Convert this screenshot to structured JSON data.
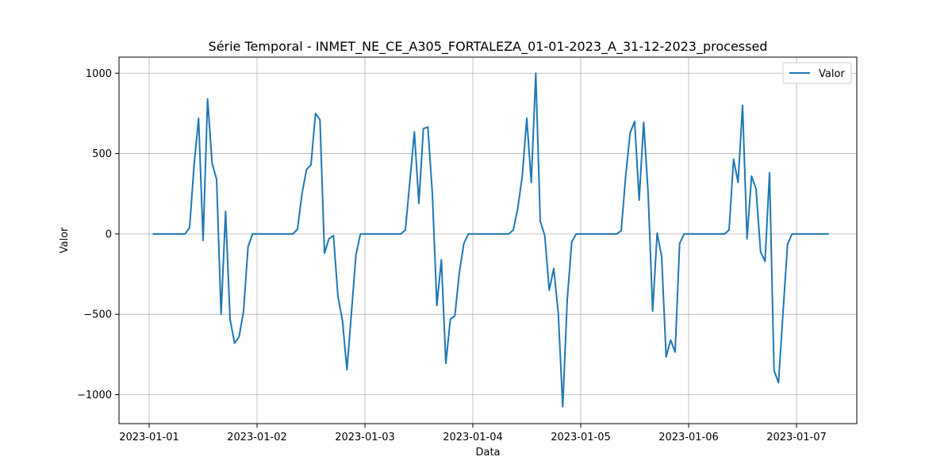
{
  "chart_data": {
    "type": "line",
    "title": "Série Temporal - INMET_NE_CE_A305_FORTALEZA_01-01-2023_A_31-12-2023_processed",
    "xlabel": "Data",
    "ylabel": "Valor",
    "x_tick_labels": [
      "2023-01-01",
      "2023-01-02",
      "2023-01-03",
      "2023-01-04",
      "2023-01-05",
      "2023-01-06",
      "2023-01-07"
    ],
    "y_ticks": [
      -1000,
      -500,
      0,
      500,
      1000
    ],
    "y_tick_labels": [
      "−1000",
      "−500",
      "0",
      "500",
      "1000"
    ],
    "ylim": [
      -1180,
      1100
    ],
    "grid": true,
    "legend_position": "top-right",
    "line_color": "#1f77b4",
    "series": [
      {
        "name": "Valor",
        "x_start": "2023-01-01 01:00",
        "x_step_hours": 1,
        "values": [
          0,
          0,
          0,
          0,
          0,
          0,
          0,
          0,
          40,
          430,
          720,
          -40,
          840,
          440,
          340,
          -500,
          140,
          -530,
          -680,
          -640,
          -480,
          -80,
          0,
          0,
          0,
          0,
          0,
          0,
          0,
          0,
          0,
          0,
          30,
          250,
          400,
          430,
          750,
          710,
          -120,
          -30,
          -10,
          -390,
          -540,
          -845,
          -490,
          -130,
          0,
          0,
          0,
          0,
          0,
          0,
          0,
          0,
          0,
          0,
          25,
          330,
          635,
          190,
          655,
          665,
          250,
          -445,
          -160,
          -805,
          -530,
          -510,
          -240,
          -60,
          0,
          0,
          0,
          0,
          0,
          0,
          0,
          0,
          0,
          0,
          25,
          160,
          360,
          720,
          320,
          1000,
          80,
          -10,
          -350,
          -215,
          -490,
          -1075,
          -410,
          -50,
          0,
          0,
          0,
          0,
          0,
          0,
          0,
          0,
          0,
          0,
          20,
          360,
          630,
          700,
          210,
          695,
          250,
          -480,
          5,
          -140,
          -765,
          -660,
          -735,
          -60,
          0,
          0,
          0,
          0,
          0,
          0,
          0,
          0,
          0,
          0,
          25,
          465,
          320,
          800,
          -30,
          360,
          280,
          -110,
          -170,
          380,
          -850,
          -925,
          -490,
          -65,
          0,
          0,
          0,
          0,
          0,
          0,
          0,
          0,
          0
        ]
      }
    ]
  }
}
